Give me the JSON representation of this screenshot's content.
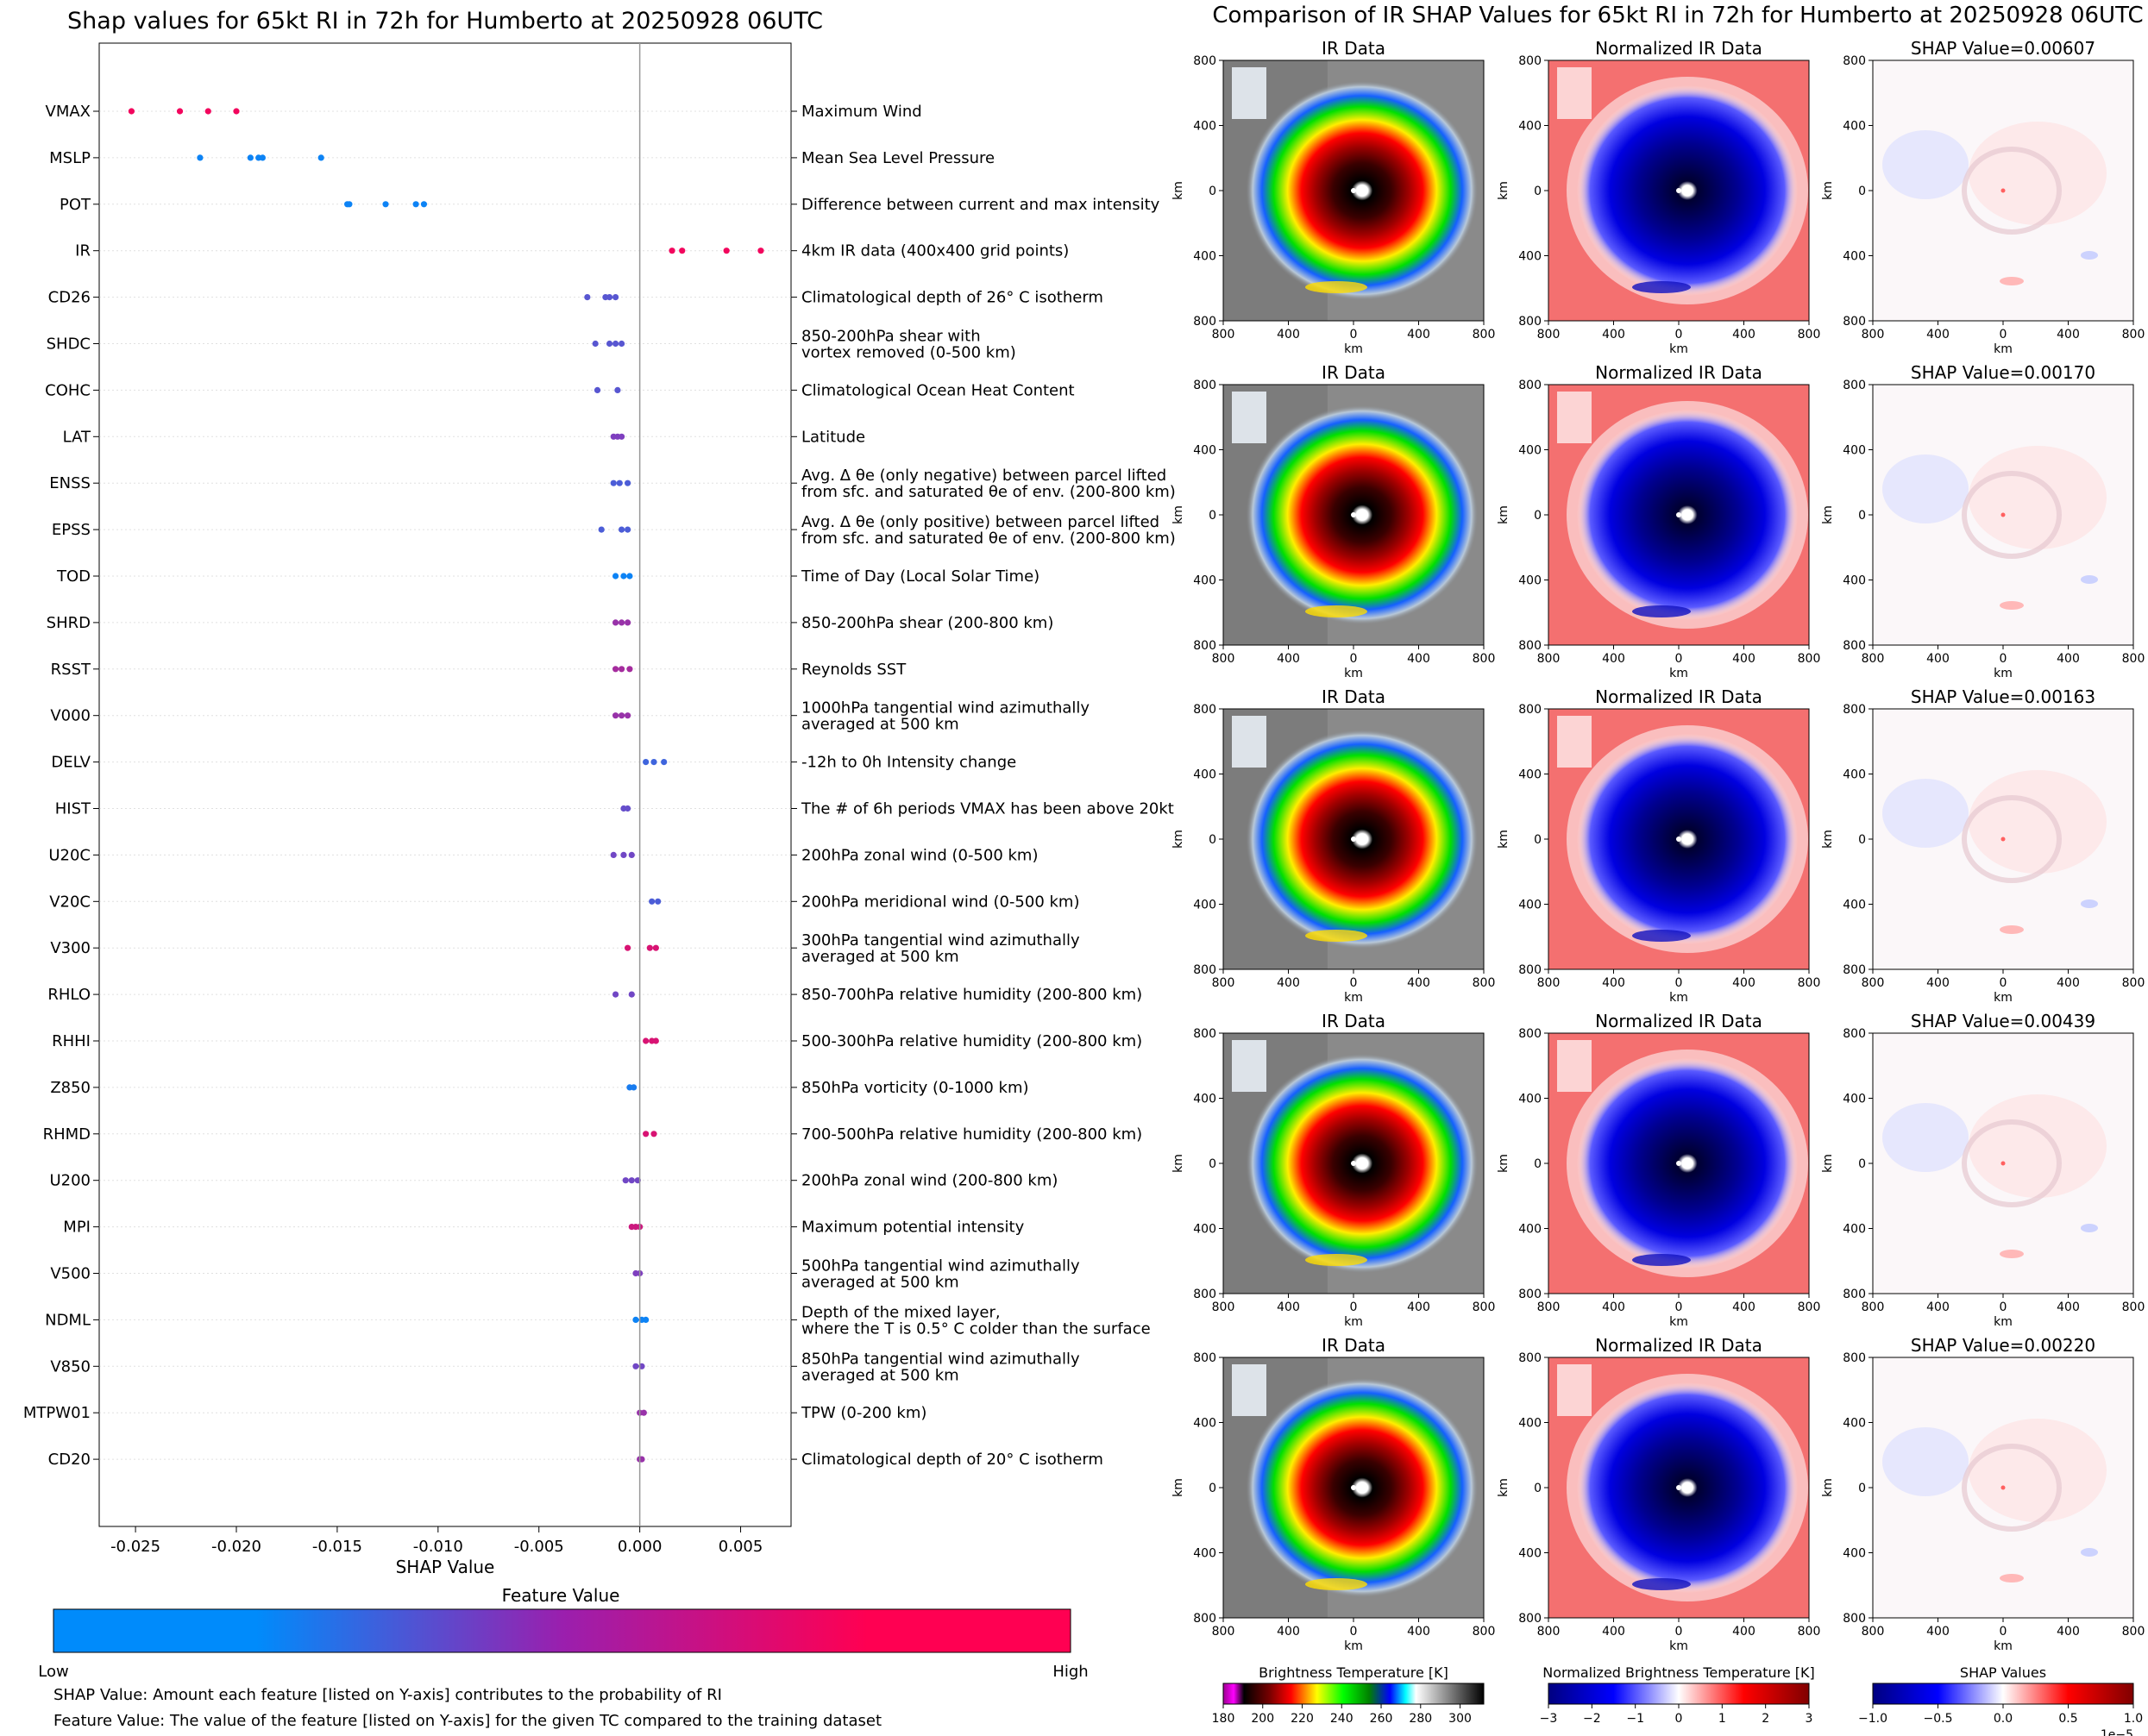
{
  "summary_plot": {
    "title": "Shap values for 65kt RI in 72h for Humberto at 20250928 06UTC",
    "xlabel": "SHAP Value",
    "colorbar_title": "Feature Value",
    "colorbar_low": "Low",
    "colorbar_high": "High",
    "note_shap": "SHAP Value: Amount each feature [listed on Y-axis] contributes to the probability of RI",
    "note_feature": "Feature Value: The value of the feature [listed on Y-axis] for the given TC compared to the training dataset",
    "colors": {
      "low": "#008bfb",
      "mid": "#7e3fbf",
      "high": "#ff0052"
    }
  },
  "chart_data": [
    {
      "type": "scatter",
      "title": "Shap values for 65kt RI in 72h for Humberto at 20250928 06UTC",
      "xlabel": "SHAP Value",
      "xlim": [
        -0.0268,
        0.0075
      ],
      "x_ticks": [
        "-0.025",
        "-0.020",
        "-0.015",
        "-0.010",
        "-0.005",
        "0.000",
        "0.005"
      ],
      "x_tick_values": [
        -0.025,
        -0.02,
        -0.015,
        -0.01,
        -0.005,
        0.0,
        0.005
      ],
      "grid": false,
      "features": [
        {
          "code": "VMAX",
          "desc": [
            "Maximum Wind"
          ],
          "x": [
            -0.0252,
            -0.0228,
            -0.0214,
            -0.02
          ],
          "c": [
            0.95,
            0.95,
            0.95,
            0.95
          ]
        },
        {
          "code": "MSLP",
          "desc": [
            "Mean Sea Level Pressure"
          ],
          "x": [
            -0.0218,
            -0.0193,
            -0.0189,
            -0.0187,
            -0.0158
          ],
          "c": [
            0.05,
            0.05,
            0.05,
            0.05,
            0.05
          ]
        },
        {
          "code": "POT",
          "desc": [
            "Difference between current and max intensity"
          ],
          "x": [
            -0.0145,
            -0.0144,
            -0.0126,
            -0.0111,
            -0.0107
          ],
          "c": [
            0.05,
            0.05,
            0.05,
            0.05,
            0.05
          ]
        },
        {
          "code": "IR",
          "desc": [
            "4km IR data (400x400 grid points)"
          ],
          "x": [
            0.0016,
            0.0021,
            0.0043,
            0.006
          ],
          "c": [
            0.95,
            0.95,
            0.95,
            0.95
          ]
        },
        {
          "code": "CD26",
          "desc": [
            "Climatological depth of 26° C isotherm"
          ],
          "x": [
            -0.0026,
            -0.0017,
            -0.0015,
            -0.0012
          ],
          "c": [
            0.35,
            0.35,
            0.35,
            0.35
          ]
        },
        {
          "code": "SHDC",
          "desc": [
            "850-200hPa shear with",
            "vortex removed (0-500 km)"
          ],
          "x": [
            -0.0022,
            -0.0015,
            -0.0012,
            -0.0009
          ],
          "c": [
            0.35,
            0.35,
            0.35,
            0.35
          ]
        },
        {
          "code": "COHC",
          "desc": [
            "Climatological Ocean Heat Content"
          ],
          "x": [
            -0.0021,
            -0.0011
          ],
          "c": [
            0.35,
            0.35
          ]
        },
        {
          "code": "LAT",
          "desc": [
            "Latitude"
          ],
          "x": [
            -0.0013,
            -0.0011,
            -0.0009
          ],
          "c": [
            0.5,
            0.5,
            0.5
          ]
        },
        {
          "code": "ENSS",
          "desc": [
            "Avg. Δ θe (only negative) between parcel lifted",
            "from sfc. and saturated θe of env. (200-800 km)"
          ],
          "x": [
            -0.0013,
            -0.001,
            -0.0006
          ],
          "c": [
            0.3,
            0.3,
            0.3
          ]
        },
        {
          "code": "EPSS",
          "desc": [
            "Avg. Δ θe (only positive) between parcel lifted",
            "from sfc. and saturated θe of env. (200-800 km)"
          ],
          "x": [
            -0.0019,
            -0.0009,
            -0.0006
          ],
          "c": [
            0.3,
            0.3,
            0.3
          ]
        },
        {
          "code": "TOD",
          "desc": [
            "Time of Day (Local Solar Time)"
          ],
          "x": [
            -0.0012,
            -0.0008,
            -0.0005
          ],
          "c": [
            0.05,
            0.05,
            0.05
          ]
        },
        {
          "code": "SHRD",
          "desc": [
            "850-200hPa shear (200-800 km)"
          ],
          "x": [
            -0.0012,
            -0.0009,
            -0.0006
          ],
          "c": [
            0.6,
            0.6,
            0.6
          ]
        },
        {
          "code": "RSST",
          "desc": [
            "Reynolds SST"
          ],
          "x": [
            -0.0012,
            -0.0009,
            -0.0005
          ],
          "c": [
            0.65,
            0.65,
            0.65
          ]
        },
        {
          "code": "V000",
          "desc": [
            "1000hPa tangential wind azimuthally",
            "averaged at 500 km"
          ],
          "x": [
            -0.0012,
            -0.0009,
            -0.0006
          ],
          "c": [
            0.6,
            0.6,
            0.6
          ]
        },
        {
          "code": "DELV",
          "desc": [
            "-12h to 0h Intensity change"
          ],
          "x": [
            0.0003,
            0.0007,
            0.0012
          ],
          "c": [
            0.25,
            0.25,
            0.25
          ]
        },
        {
          "code": "HIST",
          "desc": [
            "The # of 6h periods VMAX has been above 20kt"
          ],
          "x": [
            -0.0008,
            -0.0006
          ],
          "c": [
            0.4,
            0.4
          ]
        },
        {
          "code": "U20C",
          "desc": [
            "200hPa zonal wind (0-500 km)"
          ],
          "x": [
            -0.0013,
            -0.0008,
            -0.0004
          ],
          "c": [
            0.45,
            0.45,
            0.45
          ]
        },
        {
          "code": "V20C",
          "desc": [
            "200hPa meridional wind (0-500 km)"
          ],
          "x": [
            0.0006,
            0.0009
          ],
          "c": [
            0.3,
            0.3
          ]
        },
        {
          "code": "V300",
          "desc": [
            "300hPa tangential wind azimuthally",
            "averaged at 500 km"
          ],
          "x": [
            -0.0006,
            0.0005,
            0.0008
          ],
          "c": [
            0.85,
            0.85,
            0.85
          ]
        },
        {
          "code": "RHLO",
          "desc": [
            "850-700hPa relative humidity (200-800 km)"
          ],
          "x": [
            -0.0012,
            -0.0004
          ],
          "c": [
            0.45,
            0.45
          ]
        },
        {
          "code": "RHHI",
          "desc": [
            "500-300hPa relative humidity (200-800 km)"
          ],
          "x": [
            0.0003,
            0.0006,
            0.0008
          ],
          "c": [
            0.85,
            0.85,
            0.85
          ]
        },
        {
          "code": "Z850",
          "desc": [
            "850hPa vorticity (0-1000 km)"
          ],
          "x": [
            -0.0005,
            -0.0003
          ],
          "c": [
            0.1,
            0.1
          ]
        },
        {
          "code": "RHMD",
          "desc": [
            "700-500hPa relative humidity (200-800 km)"
          ],
          "x": [
            0.0003,
            0.0007
          ],
          "c": [
            0.85,
            0.85
          ]
        },
        {
          "code": "U200",
          "desc": [
            "200hPa zonal wind (200-800 km)"
          ],
          "x": [
            -0.0007,
            -0.0004,
            -0.0001
          ],
          "c": [
            0.45,
            0.45,
            0.45
          ]
        },
        {
          "code": "MPI",
          "desc": [
            "Maximum potential intensity"
          ],
          "x": [
            -0.0004,
            -0.0002,
            0.0
          ],
          "c": [
            0.8,
            0.8,
            0.8
          ]
        },
        {
          "code": "V500",
          "desc": [
            "500hPa tangential wind azimuthally",
            "averaged at 500 km"
          ],
          "x": [
            -0.0002,
            0.0
          ],
          "c": [
            0.5,
            0.5
          ]
        },
        {
          "code": "NDML",
          "desc": [
            "Depth of the mixed layer,",
            "where the T is 0.5° C colder than the surface"
          ],
          "x": [
            -0.0002,
            0.0001,
            0.0003
          ],
          "c": [
            0.05,
            0.05,
            0.05
          ]
        },
        {
          "code": "V850",
          "desc": [
            "850hPa tangential wind azimuthally",
            "averaged at 500 km"
          ],
          "x": [
            -0.0002,
            0.0001
          ],
          "c": [
            0.45,
            0.45
          ]
        },
        {
          "code": "MTPW01",
          "desc": [
            "TPW (0-200 km)"
          ],
          "x": [
            0.0,
            0.0002
          ],
          "c": [
            0.6,
            0.6
          ]
        },
        {
          "code": "CD20",
          "desc": [
            "Climatological depth of 20° C isotherm"
          ],
          "x": [
            0.0,
            0.0001
          ],
          "c": [
            0.6,
            0.6
          ]
        }
      ]
    },
    {
      "type": "heatmap",
      "title": "Comparison of IR SHAP Values for 65kt RI in 72h for Humberto at 20250928 06UTC",
      "column_titles": [
        "IR Data",
        "Normalized IR Data"
      ],
      "rows_shap_values": [
        "0.00607",
        "0.00170",
        "0.00163",
        "0.00439",
        "0.00220"
      ],
      "shap_title_prefix": "SHAP Value=",
      "x_label": "km",
      "y_label": "km",
      "axis_ticks": [
        "800",
        "400",
        "0",
        "400",
        "800"
      ],
      "colorbars": [
        {
          "label": "Brightness Temperature [K]",
          "ticks": [
            "180",
            "200",
            "220",
            "240",
            "260",
            "280",
            "300"
          ]
        },
        {
          "label": "Normalized Brightness Temperature [K]",
          "ticks": [
            "−3",
            "−2",
            "−1",
            "0",
            "1",
            "2",
            "3"
          ]
        },
        {
          "label": "SHAP Values",
          "ticks": [
            "−1.0",
            "−0.5",
            "0.0",
            "0.5",
            "1.0"
          ],
          "offset": "1e−5"
        }
      ]
    }
  ]
}
